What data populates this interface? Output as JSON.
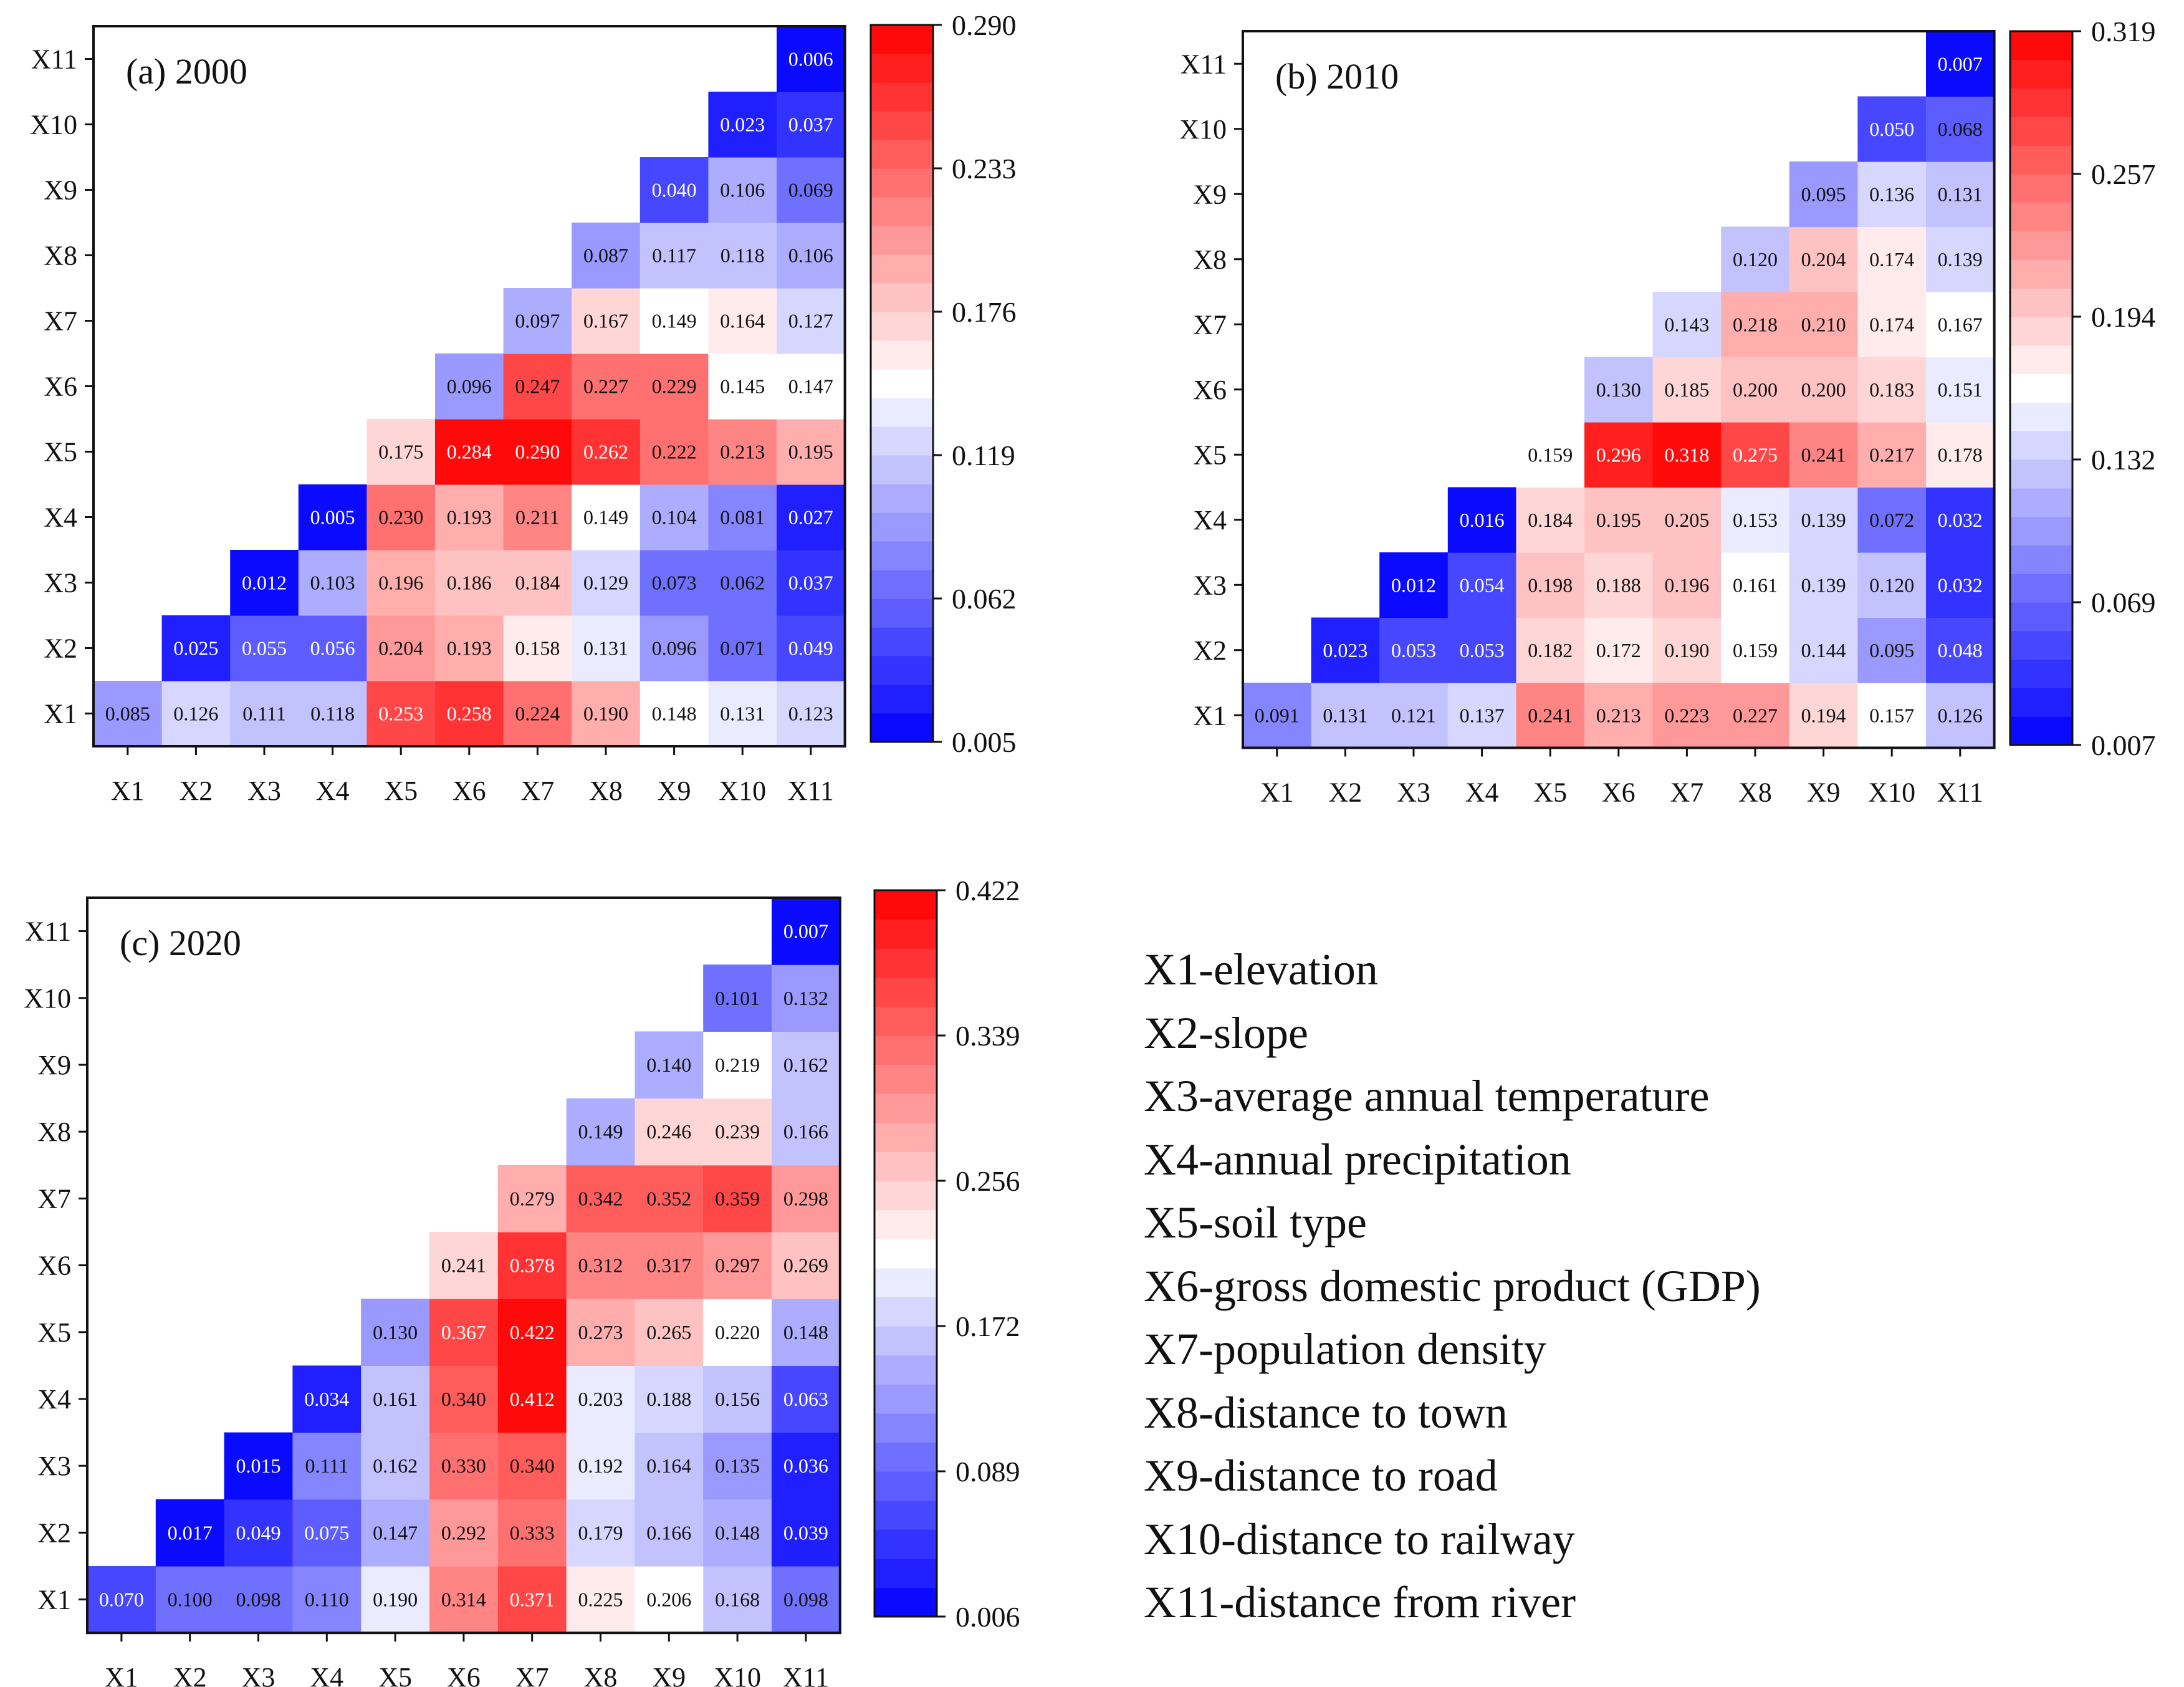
{
  "colors": {
    "low": "#0000ff",
    "mid": "#ffffff",
    "high": "#ff0000",
    "axis": "#111111"
  },
  "chart_data": [
    {
      "type": "heatmap",
      "title": "(a) 2000",
      "xlabel": "",
      "ylabel": "",
      "x_categories": [
        "X1",
        "X2",
        "X3",
        "X4",
        "X5",
        "X6",
        "X7",
        "X8",
        "X9",
        "X10",
        "X11"
      ],
      "y_categories": [
        "X1",
        "X2",
        "X3",
        "X4",
        "X5",
        "X6",
        "X7",
        "X8",
        "X9",
        "X10",
        "X11"
      ],
      "colorbar": {
        "min": 0.005,
        "max": 0.29,
        "ticks": [
          "0.290",
          "0.233",
          "0.176",
          "0.119",
          "0.062",
          "0.005"
        ]
      },
      "rows": [
        [
          "0.085",
          "0.126",
          "0.111",
          "0.118",
          "0.253",
          "0.258",
          "0.224",
          "0.190",
          "0.148",
          "0.131",
          "0.123"
        ],
        [
          "0.025",
          "0.055",
          "0.056",
          "0.204",
          "0.193",
          "0.158",
          "0.131",
          "0.096",
          "0.071",
          "0.049"
        ],
        [
          "0.012",
          "0.103",
          "0.196",
          "0.186",
          "0.184",
          "0.129",
          "0.073",
          "0.062",
          "0.037"
        ],
        [
          "0.005",
          "0.230",
          "0.193",
          "0.211",
          "0.149",
          "0.104",
          "0.081",
          "0.027"
        ],
        [
          "0.175",
          "0.284",
          "0.290",
          "0.262",
          "0.222",
          "0.213",
          "0.195"
        ],
        [
          "0.096",
          "0.247",
          "0.227",
          "0.229",
          "0.145",
          "0.147"
        ],
        [
          "0.097",
          "0.167",
          "0.149",
          "0.164",
          "0.127"
        ],
        [
          "0.087",
          "0.117",
          "0.118",
          "0.106"
        ],
        [
          "0.040",
          "0.106",
          "0.069"
        ],
        [
          "0.023",
          "0.037"
        ],
        [
          "0.006"
        ]
      ]
    },
    {
      "type": "heatmap",
      "title": "(b) 2010",
      "xlabel": "",
      "ylabel": "",
      "x_categories": [
        "X1",
        "X2",
        "X3",
        "X4",
        "X5",
        "X6",
        "X7",
        "X8",
        "X9",
        "X10",
        "X11"
      ],
      "y_categories": [
        "X1",
        "X2",
        "X3",
        "X4",
        "X5",
        "X6",
        "X7",
        "X8",
        "X9",
        "X10",
        "X11"
      ],
      "colorbar": {
        "min": 0.007,
        "max": 0.319,
        "ticks": [
          "0.319",
          "0.257",
          "0.194",
          "0.132",
          "0.069",
          "0.007"
        ]
      },
      "rows": [
        [
          "0.091",
          "0.131",
          "0.121",
          "0.137",
          "0.241",
          "0.213",
          "0.223",
          "0.227",
          "0.194",
          "0.157",
          "0.126"
        ],
        [
          "0.023",
          "0.053",
          "0.053",
          "0.182",
          "0.172",
          "0.190",
          "0.159",
          "0.144",
          "0.095",
          "0.048"
        ],
        [
          "0.012",
          "0.054",
          "0.198",
          "0.188",
          "0.196",
          "0.161",
          "0.139",
          "0.120",
          "0.032"
        ],
        [
          "0.016",
          "0.184",
          "0.195",
          "0.205",
          "0.153",
          "0.139",
          "0.072",
          "0.032"
        ],
        [
          "0.159",
          "0.296",
          "0.318",
          "0.275",
          "0.241",
          "0.217",
          "0.178"
        ],
        [
          "0.130",
          "0.185",
          "0.200",
          "0.200",
          "0.183",
          "0.151"
        ],
        [
          "0.143",
          "0.218",
          "0.210",
          "0.174",
          "0.167"
        ],
        [
          "0.120",
          "0.204",
          "0.174",
          "0.139"
        ],
        [
          "0.095",
          "0.136",
          "0.131"
        ],
        [
          "0.050",
          "0.068"
        ],
        [
          "0.007"
        ]
      ]
    },
    {
      "type": "heatmap",
      "title": "(c) 2020",
      "xlabel": "",
      "ylabel": "",
      "x_categories": [
        "X1",
        "X2",
        "X3",
        "X4",
        "X5",
        "X6",
        "X7",
        "X8",
        "X9",
        "X10",
        "X11"
      ],
      "y_categories": [
        "X1",
        "X2",
        "X3",
        "X4",
        "X5",
        "X6",
        "X7",
        "X8",
        "X9",
        "X10",
        "X11"
      ],
      "colorbar": {
        "min": 0.006,
        "max": 0.422,
        "ticks": [
          "0.422",
          "0.339",
          "0.256",
          "0.172",
          "0.089",
          "0.006"
        ]
      },
      "rows": [
        [
          "0.070",
          "0.100",
          "0.098",
          "0.110",
          "0.190",
          "0.314",
          "0.371",
          "0.225",
          "0.206",
          "0.168",
          "0.098"
        ],
        [
          "0.017",
          "0.049",
          "0.075",
          "0.147",
          "0.292",
          "0.333",
          "0.179",
          "0.166",
          "0.148",
          "0.039"
        ],
        [
          "0.015",
          "0.111",
          "0.162",
          "0.330",
          "0.340",
          "0.192",
          "0.164",
          "0.135",
          "0.036"
        ],
        [
          "0.034",
          "0.161",
          "0.340",
          "0.412",
          "0.203",
          "0.188",
          "0.156",
          "0.063"
        ],
        [
          "0.130",
          "0.367",
          "0.422",
          "0.273",
          "0.265",
          "0.220",
          "0.148"
        ],
        [
          "0.241",
          "0.378",
          "0.312",
          "0.317",
          "0.297",
          "0.269"
        ],
        [
          "0.279",
          "0.342",
          "0.352",
          "0.359",
          "0.298"
        ],
        [
          "0.149",
          "0.246",
          "0.239",
          "0.166"
        ],
        [
          "0.140",
          "0.219",
          "0.162"
        ],
        [
          "0.101",
          "0.132"
        ],
        [
          "0.007"
        ]
      ]
    }
  ],
  "legend": [
    "X1-elevation",
    "X2-slope",
    "X3-average annual temperature",
    "X4-annual precipitation",
    "X5-soil type",
    "X6-gross domestic product (GDP)",
    "X7-population density",
    "X8-distance to town",
    "X9-distance to road",
    "X10-distance to railway",
    "X11-distance from river"
  ]
}
